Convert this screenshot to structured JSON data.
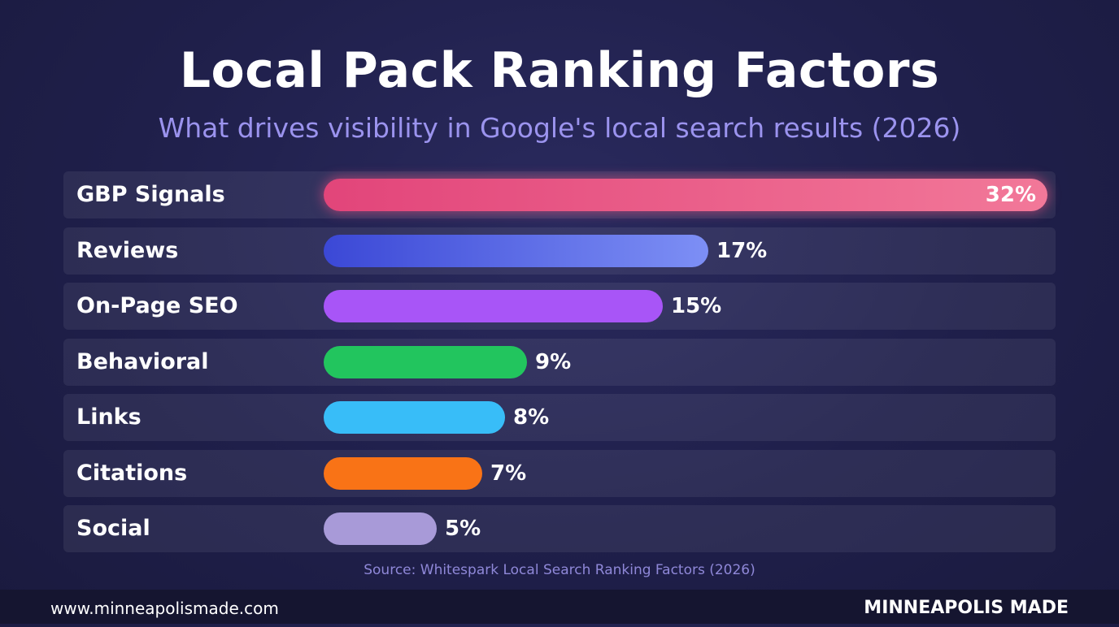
{
  "chart_data": {
    "type": "bar",
    "orientation": "horizontal",
    "title": "Local Pack Ranking Factors",
    "subtitle": "What drives visibility in Google's local search results (2026)",
    "categories": [
      "GBP Signals",
      "Reviews",
      "On-Page SEO",
      "Behavioral",
      "Links",
      "Citations",
      "Social"
    ],
    "values": [
      32,
      17,
      15,
      9,
      8,
      7,
      5
    ],
    "value_labels": [
      "32%",
      "17%",
      "15%",
      "9%",
      "8%",
      "7%",
      "5%"
    ],
    "colors": [
      [
        "#e2457a",
        "#f27899"
      ],
      [
        "#3b48d6",
        "#7d8ff5"
      ],
      [
        "#a855f7",
        "#a855f7"
      ],
      [
        "#22c55e",
        "#22c55e"
      ],
      [
        "#38bdf8",
        "#38bdf8"
      ],
      [
        "#f97316",
        "#f97316"
      ],
      [
        "#a89ad8",
        "#a89ad8"
      ]
    ],
    "xlim": [
      0,
      32
    ],
    "grid": false,
    "legend": "none",
    "source": "Source: Whitespark Local Search Ranking Factors (2026)"
  },
  "footer": {
    "url": "www.minneapolismade.com",
    "brand": "MINNEAPOLIS MADE"
  }
}
